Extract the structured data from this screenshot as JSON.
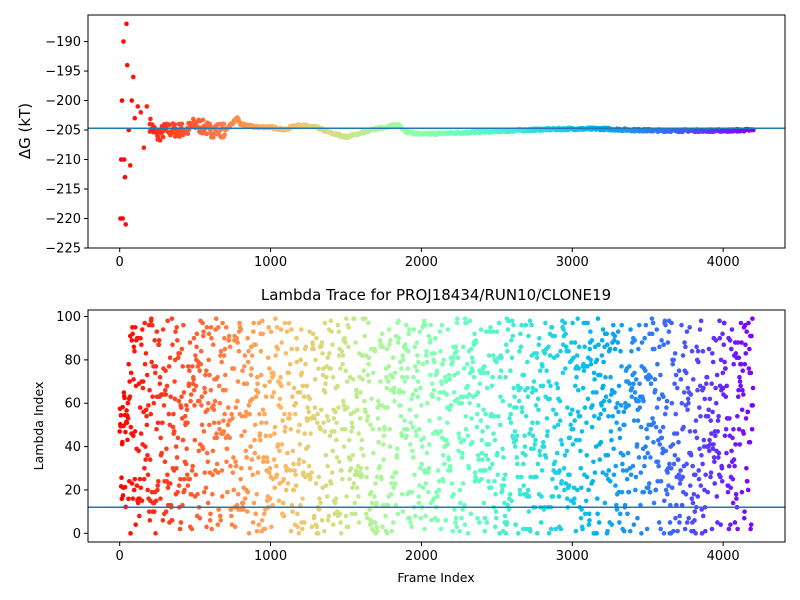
{
  "chart_data": [
    {
      "type": "scatter",
      "title": "",
      "xlabel": "",
      "ylabel": "ΔG (kT)",
      "xlim": [
        -210,
        4410
      ],
      "ylim": [
        -225,
        -185.5
      ],
      "xticks": [
        0,
        1000,
        2000,
        3000,
        4000
      ],
      "xtick_labels": [
        "0",
        "1000",
        "2000",
        "3000",
        "4000"
      ],
      "yticks": [
        -190,
        -195,
        -200,
        -205,
        -210,
        -215,
        -220,
        -225
      ],
      "ytick_labels": [
        "−190",
        "−195",
        "−200",
        "−205",
        "−210",
        "−215",
        "−220",
        "−225"
      ],
      "grid": false,
      "colormap": "rainbow (red at frame 0 → violet at last frame)",
      "n_frames": 4200,
      "reference_line": {
        "y": -204.7,
        "color": "#1f77b4"
      },
      "series": [
        {
          "x": [
            5,
            10,
            15,
            20,
            25,
            30,
            35,
            40,
            45,
            50,
            60,
            70,
            80,
            90,
            100,
            120,
            140,
            160,
            180,
            200,
            250,
            300,
            350,
            400,
            450,
            500,
            600,
            700,
            780,
            800,
            900,
            1000,
            1100,
            1150,
            1200,
            1300,
            1400,
            1500,
            1600,
            1700,
            1800,
            1850,
            1900,
            2000,
            2200,
            2400,
            2600,
            2800,
            3000,
            3200,
            3400,
            3600,
            3800,
            4000,
            4200
          ],
          "values": [
            -220,
            -210,
            -200,
            -220,
            -190,
            -210,
            -213,
            -221,
            -187,
            -194,
            -205,
            -211,
            -200,
            -196,
            -203,
            -201,
            -202,
            -208,
            -201,
            -204,
            -206,
            -205,
            -205,
            -205,
            -205,
            -204,
            -205,
            -205,
            -203,
            -204,
            -204.5,
            -204.5,
            -205,
            -204.3,
            -204.2,
            -204.5,
            -205.5,
            -206.2,
            -205.5,
            -204.8,
            -204.3,
            -204.1,
            -205.3,
            -205.7,
            -205.5,
            -205.3,
            -205.1,
            -204.9,
            -204.8,
            -204.8,
            -205,
            -205.1,
            -205.1,
            -205.1,
            -205
          ]
        }
      ]
    },
    {
      "type": "scatter",
      "title": "Lambda Trace for PROJ18434/RUN10/CLONE19",
      "xlabel": "Frame Index",
      "ylabel": "Lambda Index",
      "xlim": [
        -210,
        4410
      ],
      "ylim": [
        -4,
        103
      ],
      "xticks": [
        0,
        1000,
        2000,
        3000,
        4000
      ],
      "xtick_labels": [
        "0",
        "1000",
        "2000",
        "3000",
        "4000"
      ],
      "yticks": [
        0,
        20,
        40,
        60,
        80,
        100
      ],
      "ytick_labels": [
        "0",
        "20",
        "40",
        "60",
        "80",
        "100"
      ],
      "grid": false,
      "colormap": "rainbow (red at frame 0 → violet at last frame)",
      "n_frames": 4200,
      "value_range": [
        0,
        99
      ],
      "reference_line": {
        "y": 12,
        "color": "#1f77b4"
      },
      "series": []
    }
  ]
}
